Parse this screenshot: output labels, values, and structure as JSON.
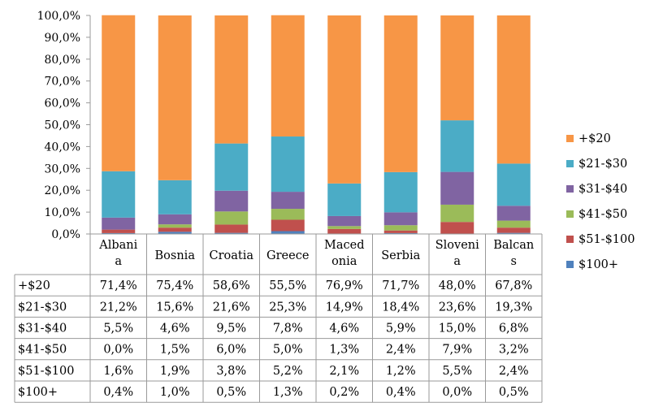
{
  "chart_data": {
    "type": "bar",
    "stacked": true,
    "title": "",
    "xlabel": "",
    "ylabel": "",
    "ylim": [
      0,
      100
    ],
    "y_ticks": [
      "0,0%",
      "10,0%",
      "20,0%",
      "30,0%",
      "40,0%",
      "50,0%",
      "60,0%",
      "70,0%",
      "80,0%",
      "90,0%",
      "100,0%"
    ],
    "categories": [
      [
        "Albani",
        "a"
      ],
      [
        "Bosnia"
      ],
      [
        "Croatia"
      ],
      [
        "Greece"
      ],
      [
        "Maced",
        "onia"
      ],
      [
        "Serbia"
      ],
      [
        "Sloveni",
        "a"
      ],
      [
        "Balcan",
        "s"
      ]
    ],
    "series": [
      {
        "name": "$100+",
        "color": "#4F81BD",
        "values": [
          0.4,
          1.0,
          0.5,
          1.3,
          0.2,
          0.4,
          0.0,
          0.5
        ],
        "labels": [
          "0,4%",
          "1,0%",
          "0,5%",
          "1,3%",
          "0,2%",
          "0,4%",
          "0,0%",
          "0,5%"
        ]
      },
      {
        "name": "$51-$100",
        "color": "#C0504D",
        "values": [
          1.6,
          1.9,
          3.8,
          5.2,
          2.1,
          1.2,
          5.5,
          2.4
        ],
        "labels": [
          "1,6%",
          "1,9%",
          "3,8%",
          "5,2%",
          "2,1%",
          "1,2%",
          "5,5%",
          "2,4%"
        ]
      },
      {
        "name": "$41-$50",
        "color": "#9BBB59",
        "values": [
          0.0,
          1.5,
          6.0,
          5.0,
          1.3,
          2.4,
          7.9,
          3.2
        ],
        "labels": [
          "0,0%",
          "1,5%",
          "6,0%",
          "5,0%",
          "1,3%",
          "2,4%",
          "7,9%",
          "3,2%"
        ]
      },
      {
        "name": "$31-$40",
        "color": "#8064A2",
        "values": [
          5.5,
          4.6,
          9.5,
          7.8,
          4.6,
          5.9,
          15.0,
          6.8
        ],
        "labels": [
          "5,5%",
          "4,6%",
          "9,5%",
          "7,8%",
          "4,6%",
          "5,9%",
          "15,0%",
          "6,8%"
        ]
      },
      {
        "name": "$21-$30",
        "color": "#4BACC6",
        "values": [
          21.2,
          15.6,
          21.6,
          25.3,
          14.9,
          18.4,
          23.6,
          19.3
        ],
        "labels": [
          "21,2%",
          "15,6%",
          "21,6%",
          "25,3%",
          "14,9%",
          "18,4%",
          "23,6%",
          "19,3%"
        ]
      },
      {
        "name": "+$20",
        "color": "#F79646",
        "values": [
          71.4,
          75.4,
          58.6,
          55.5,
          76.9,
          71.7,
          48.0,
          67.8
        ],
        "labels": [
          "71,4%",
          "75,4%",
          "58,6%",
          "55,5%",
          "76,9%",
          "71,7%",
          "48,0%",
          "67,8%"
        ]
      }
    ],
    "table_row_order": [
      "+$20",
      "$21-$30",
      "$31-$40",
      "$41-$50",
      "$51-$100",
      "$100+"
    ],
    "legend_order": [
      "+$20",
      "$21-$30",
      "$31-$40",
      "$41-$50",
      "$51-$100",
      "$100+"
    ],
    "legend_position": "right",
    "data_table": true
  }
}
